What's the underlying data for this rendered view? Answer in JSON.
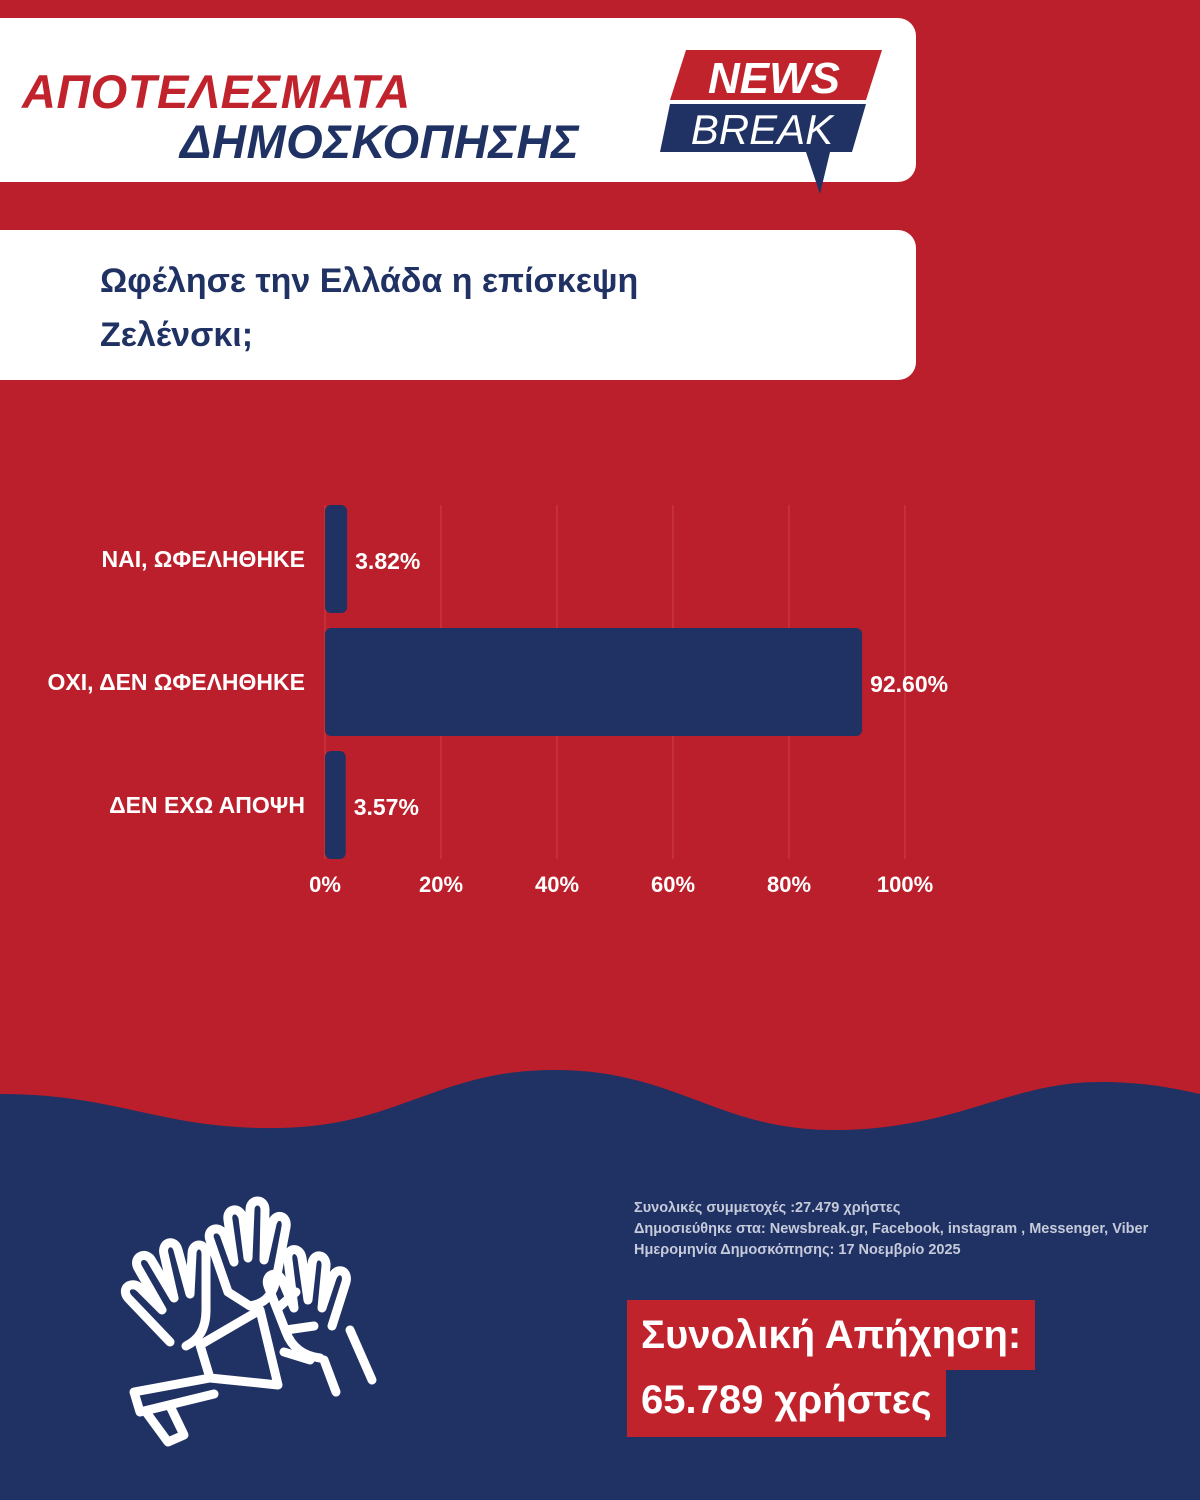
{
  "header": {
    "title_line1": "ΑΠΟΤΕΛΕΣΜΑΤΑ",
    "title_line2": "ΔΗΜΟΣΚΟΠΗΣΗΣ",
    "logo_word1": "NEWS",
    "logo_word2": "BREAK"
  },
  "question": "Ωφέλησε την Ελλάδα η επίσκεψη Ζελένσκι;",
  "chart_data": {
    "type": "bar",
    "orientation": "horizontal",
    "categories": [
      "ΝΑΙ, ΩΦΕΛΗΘΗΚΕ",
      "ΟΧΙ, ΔΕΝ ΩΦΕΛΗΘΗΚΕ",
      "ΔΕΝ ΕΧΩ ΑΠΟΨΗ"
    ],
    "values": [
      3.82,
      92.6,
      3.57
    ],
    "value_labels": [
      "3.82%",
      "92.60%",
      "3.57%"
    ],
    "xlim": [
      0,
      100
    ],
    "x_ticks": [
      "0%",
      "20%",
      "40%",
      "60%",
      "80%",
      "100%"
    ],
    "grid": true,
    "bar_color": "#203163"
  },
  "footer": {
    "participants": "Συνολικές συμμετοχές :27.479 χρήστες",
    "published": "Δημοσιεύθηκε στα: Newsbreak.gr, Facebook, instagram , Messenger, Viber",
    "date": "Ημερομηνία Δημοσκόπησης: 17 Νοεμβρίο 2025",
    "total_line1": "Συνολική Απήχηση:",
    "total_line2": "65.789 χρήστες"
  },
  "colors": {
    "red": "#bb1f2b",
    "navy": "#203163",
    "white": "#ffffff"
  },
  "icons": [
    "raised-hands-icon",
    "megaphone-icon"
  ]
}
